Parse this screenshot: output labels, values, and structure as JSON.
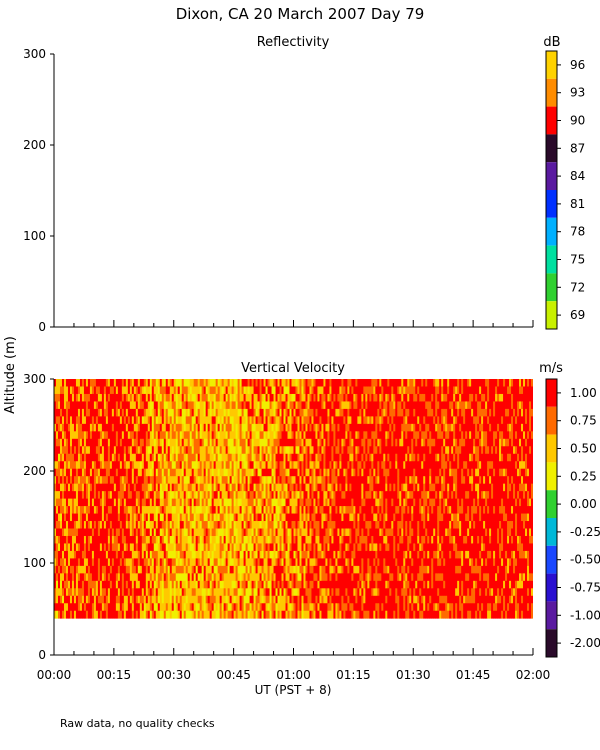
{
  "figure": {
    "title": "Dixon, CA 20 March 2007  Day  79",
    "footnote": "Raw data, no quality checks",
    "shared_ylabel": "Altitude (m)",
    "xlabel": "UT  (PST + 8)"
  },
  "chart_data": [
    {
      "type": "heatmap",
      "title": "Reflectivity",
      "ylabel": "Altitude (m)",
      "ylim": [
        0,
        300
      ],
      "yticks": [
        "0",
        "100",
        "200",
        "300"
      ],
      "xticks": [
        "00:00",
        "00:15",
        "00:30",
        "00:45",
        "01:00",
        "01:15",
        "01:30",
        "01:45",
        "02:00"
      ],
      "colorbar": {
        "unit": "dB",
        "labels": [
          "96",
          "93",
          "90",
          "87",
          "84",
          "81",
          "78",
          "75",
          "72",
          "69"
        ],
        "colors": [
          "#ffd200",
          "#ff8c00",
          "#ff0000",
          "#2a0a2a",
          "#5a1aa0",
          "#0030ff",
          "#00b0ff",
          "#00e0a0",
          "#30d030",
          "#c8f000"
        ]
      },
      "data": "no data plotted"
    },
    {
      "type": "heatmap",
      "title": "Vertical Velocity",
      "xlabel": "UT  (PST + 8)",
      "ylabel": "Altitude (m)",
      "ylim": [
        0,
        300
      ],
      "yticks": [
        "0",
        "100",
        "200",
        "300"
      ],
      "xticks": [
        "00:00",
        "00:15",
        "00:30",
        "00:45",
        "01:00",
        "01:15",
        "01:30",
        "01:45",
        "02:00"
      ],
      "data_altitude_range": [
        40,
        300
      ],
      "colorbar": {
        "unit": "m/s",
        "labels": [
          "1.00",
          "0.75",
          "0.50",
          "0.25",
          "0.00",
          "-0.25",
          "-0.50",
          "-0.75",
          "-1.00",
          "-2.00"
        ],
        "colors": [
          "#ff0000",
          "#ff6a00",
          "#ffc800",
          "#f0f000",
          "#30d030",
          "#00b8d8",
          "#1a48ff",
          "#2a10d0",
          "#5a1aa0",
          "#2a0a2a"
        ]
      },
      "dominant_values_by_time": [
        {
          "time": "00:00",
          "value": 0.75
        },
        {
          "time": "00:15",
          "value": 1.0
        },
        {
          "time": "00:30",
          "value": 0.5
        },
        {
          "time": "00:45",
          "value": 0.5
        },
        {
          "time": "01:00",
          "value": 0.75
        },
        {
          "time": "01:15",
          "value": 1.0
        },
        {
          "time": "01:30",
          "value": 1.0
        },
        {
          "time": "01:45",
          "value": 1.0
        },
        {
          "time": "02:00",
          "value": 1.0
        }
      ]
    }
  ]
}
